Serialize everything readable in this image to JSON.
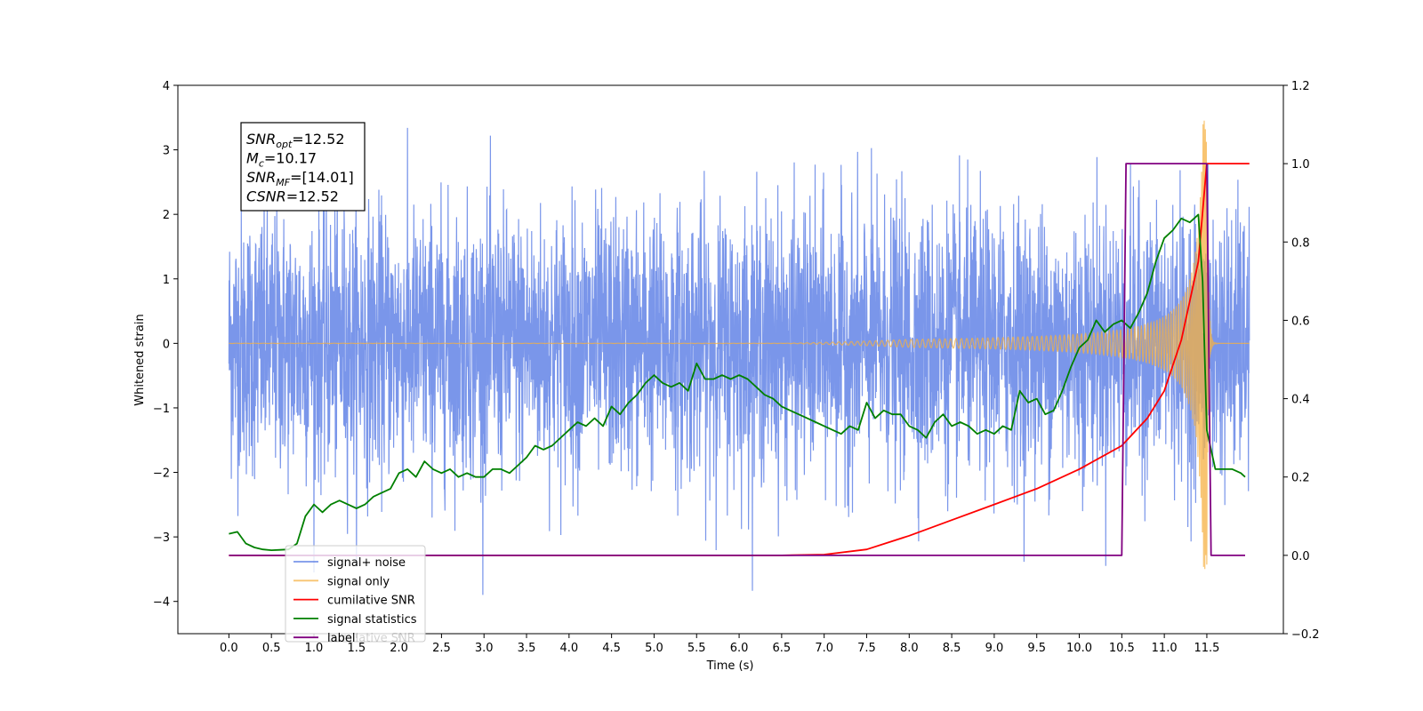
{
  "chart_data": {
    "type": "line",
    "xlabel": "Time (s)",
    "ylabel_left": "Whitened strain",
    "ylabel_right": "",
    "xlim": [
      -0.6,
      12.4
    ],
    "ylim_left": [
      -4.5,
      4.0
    ],
    "ylim_right": [
      -0.2,
      1.2
    ],
    "x_ticks": [
      "0.0",
      "0.5",
      "1.0",
      "1.5",
      "2.0",
      "2.5",
      "3.0",
      "3.5",
      "4.0",
      "4.5",
      "5.0",
      "5.5",
      "6.0",
      "6.5",
      "7.0",
      "7.5",
      "8.0",
      "8.5",
      "9.0",
      "9.5",
      "10.0",
      "10.5",
      "11.0",
      "11.5"
    ],
    "y_ticks_left": [
      "4",
      "3",
      "2",
      "1",
      "0",
      "−1",
      "−2",
      "−3",
      "−4"
    ],
    "y_ticks_right": [
      "1.2",
      "1.0",
      "0.8",
      "0.6",
      "0.4",
      "0.2",
      "0.0",
      "−0.2"
    ],
    "grid": false,
    "legend_position": "lower-left",
    "info_box": {
      "lines": [
        {
          "label": "SNR",
          "sub": "opt",
          "value": "=12.52"
        },
        {
          "label": "M",
          "sub": "c",
          "value": "=10.17"
        },
        {
          "label": "SNR",
          "sub": "MF",
          "value": "=[14.01]"
        },
        {
          "label": "CSNR",
          "sub": "",
          "value": "=12.52"
        }
      ]
    },
    "series": [
      {
        "name": "signal+ noise",
        "axis": "left",
        "color": "#4169e1",
        "style": "noise",
        "x_range": [
          0.0,
          12.0
        ],
        "band_typical": [
          -1.3,
          1.3
        ],
        "band_peak": [
          -4.1,
          3.65
        ]
      },
      {
        "name": "signal only",
        "axis": "left",
        "color": "#f5b041",
        "style": "chirp",
        "x_range": [
          0.0,
          12.0
        ],
        "merger_time": 11.5,
        "amplitude_at_10s": 0.1,
        "amplitude_at_merger": 3.5
      },
      {
        "name": "cumilative SNR",
        "axis": "right",
        "color": "#ff0000",
        "style": "line",
        "x": [
          0.0,
          6.5,
          7.0,
          7.5,
          8.0,
          8.5,
          9.0,
          9.5,
          10.0,
          10.5,
          10.8,
          11.0,
          11.2,
          11.4,
          11.5,
          12.0
        ],
        "y": [
          0.0,
          0.0,
          0.002,
          0.015,
          0.05,
          0.09,
          0.13,
          0.17,
          0.22,
          0.28,
          0.35,
          0.42,
          0.55,
          0.75,
          1.0,
          1.0
        ]
      },
      {
        "name": "signal statistics",
        "axis": "right",
        "color": "#008000",
        "style": "line",
        "x": [
          0.0,
          0.1,
          0.2,
          0.3,
          0.4,
          0.5,
          0.6,
          0.7,
          0.8,
          0.9,
          1.0,
          1.1,
          1.2,
          1.3,
          1.4,
          1.5,
          1.6,
          1.7,
          1.8,
          1.9,
          2.0,
          2.1,
          2.2,
          2.3,
          2.4,
          2.5,
          2.6,
          2.7,
          2.8,
          2.9,
          3.0,
          3.1,
          3.2,
          3.3,
          3.4,
          3.5,
          3.6,
          3.7,
          3.8,
          3.9,
          4.0,
          4.1,
          4.2,
          4.3,
          4.4,
          4.5,
          4.6,
          4.7,
          4.8,
          4.9,
          5.0,
          5.1,
          5.2,
          5.3,
          5.4,
          5.5,
          5.6,
          5.7,
          5.8,
          5.9,
          6.0,
          6.1,
          6.2,
          6.3,
          6.4,
          6.5,
          6.6,
          6.7,
          6.8,
          6.9,
          7.0,
          7.1,
          7.2,
          7.3,
          7.4,
          7.5,
          7.6,
          7.7,
          7.8,
          7.9,
          8.0,
          8.1,
          8.2,
          8.3,
          8.4,
          8.5,
          8.6,
          8.7,
          8.8,
          8.9,
          9.0,
          9.1,
          9.2,
          9.3,
          9.4,
          9.5,
          9.6,
          9.7,
          9.8,
          9.9,
          10.0,
          10.1,
          10.2,
          10.3,
          10.4,
          10.5,
          10.6,
          10.7,
          10.8,
          10.9,
          11.0,
          11.1,
          11.2,
          11.3,
          11.4,
          11.45,
          11.5,
          11.6,
          11.7,
          11.8,
          11.9,
          11.95
        ],
        "y": [
          0.055,
          0.06,
          0.03,
          0.02,
          0.015,
          0.013,
          0.014,
          0.015,
          0.03,
          0.1,
          0.13,
          0.11,
          0.13,
          0.14,
          0.13,
          0.12,
          0.13,
          0.15,
          0.16,
          0.17,
          0.21,
          0.22,
          0.2,
          0.24,
          0.22,
          0.21,
          0.22,
          0.2,
          0.21,
          0.2,
          0.2,
          0.22,
          0.22,
          0.21,
          0.23,
          0.25,
          0.28,
          0.27,
          0.28,
          0.3,
          0.32,
          0.34,
          0.33,
          0.35,
          0.33,
          0.38,
          0.36,
          0.39,
          0.41,
          0.44,
          0.46,
          0.44,
          0.43,
          0.44,
          0.42,
          0.49,
          0.45,
          0.45,
          0.46,
          0.45,
          0.46,
          0.45,
          0.43,
          0.41,
          0.4,
          0.38,
          0.37,
          0.36,
          0.35,
          0.34,
          0.33,
          0.32,
          0.31,
          0.33,
          0.32,
          0.39,
          0.35,
          0.37,
          0.36,
          0.36,
          0.33,
          0.32,
          0.3,
          0.34,
          0.36,
          0.33,
          0.34,
          0.33,
          0.31,
          0.32,
          0.31,
          0.33,
          0.32,
          0.42,
          0.39,
          0.4,
          0.36,
          0.37,
          0.42,
          0.48,
          0.53,
          0.55,
          0.6,
          0.57,
          0.59,
          0.6,
          0.58,
          0.62,
          0.67,
          0.75,
          0.81,
          0.83,
          0.86,
          0.85,
          0.87,
          0.7,
          0.32,
          0.22,
          0.22,
          0.22,
          0.21,
          0.2
        ]
      },
      {
        "name": "label",
        "axis": "right",
        "color": "#800080",
        "style": "step",
        "x": [
          0.0,
          10.5,
          10.55,
          11.5,
          11.55,
          11.95
        ],
        "y": [
          0.0,
          0.0,
          1.0,
          1.0,
          0.0,
          0.0
        ]
      }
    ],
    "legend": {
      "entries": [
        "signal+ noise",
        "signal only",
        "cumilative SNR",
        "signal statistics",
        "label"
      ],
      "overlapped_text": "cumilative SNR"
    }
  }
}
